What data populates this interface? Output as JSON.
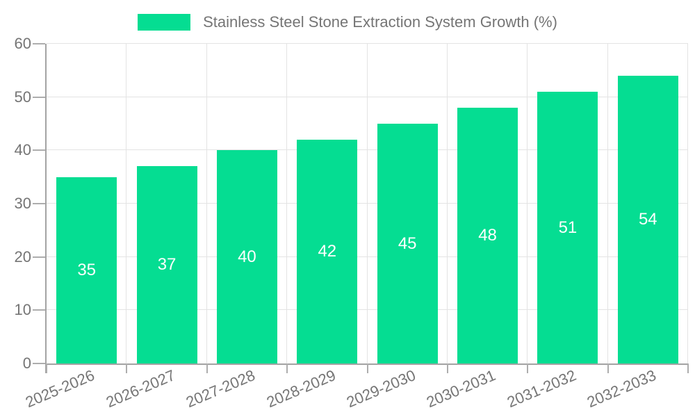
{
  "legend": {
    "label": "Stainless Steel Stone Extraction System Growth (%)",
    "swatch_color": "#05DD92"
  },
  "chart_data": {
    "type": "bar",
    "title": "Stainless Steel Stone Extraction System Growth (%)",
    "categories": [
      "2025-2026",
      "2026-2027",
      "2027-2028",
      "2028-2029",
      "2029-2030",
      "2030-2031",
      "2031-2032",
      "2032-2033"
    ],
    "values": [
      35,
      37,
      40,
      42,
      45,
      48,
      51,
      54
    ],
    "xlabel": "",
    "ylabel": "",
    "ylim": [
      0,
      60
    ],
    "yticks": [
      0,
      10,
      20,
      30,
      40,
      50,
      60
    ],
    "grid": "on",
    "legend_position": "top",
    "bar_color": "#05DD92",
    "value_label_color": "#ffffff",
    "axis_text_color": "#757575",
    "gridline_color": "#e3e3e3",
    "axis_line_color": "#a3a3a3"
  }
}
